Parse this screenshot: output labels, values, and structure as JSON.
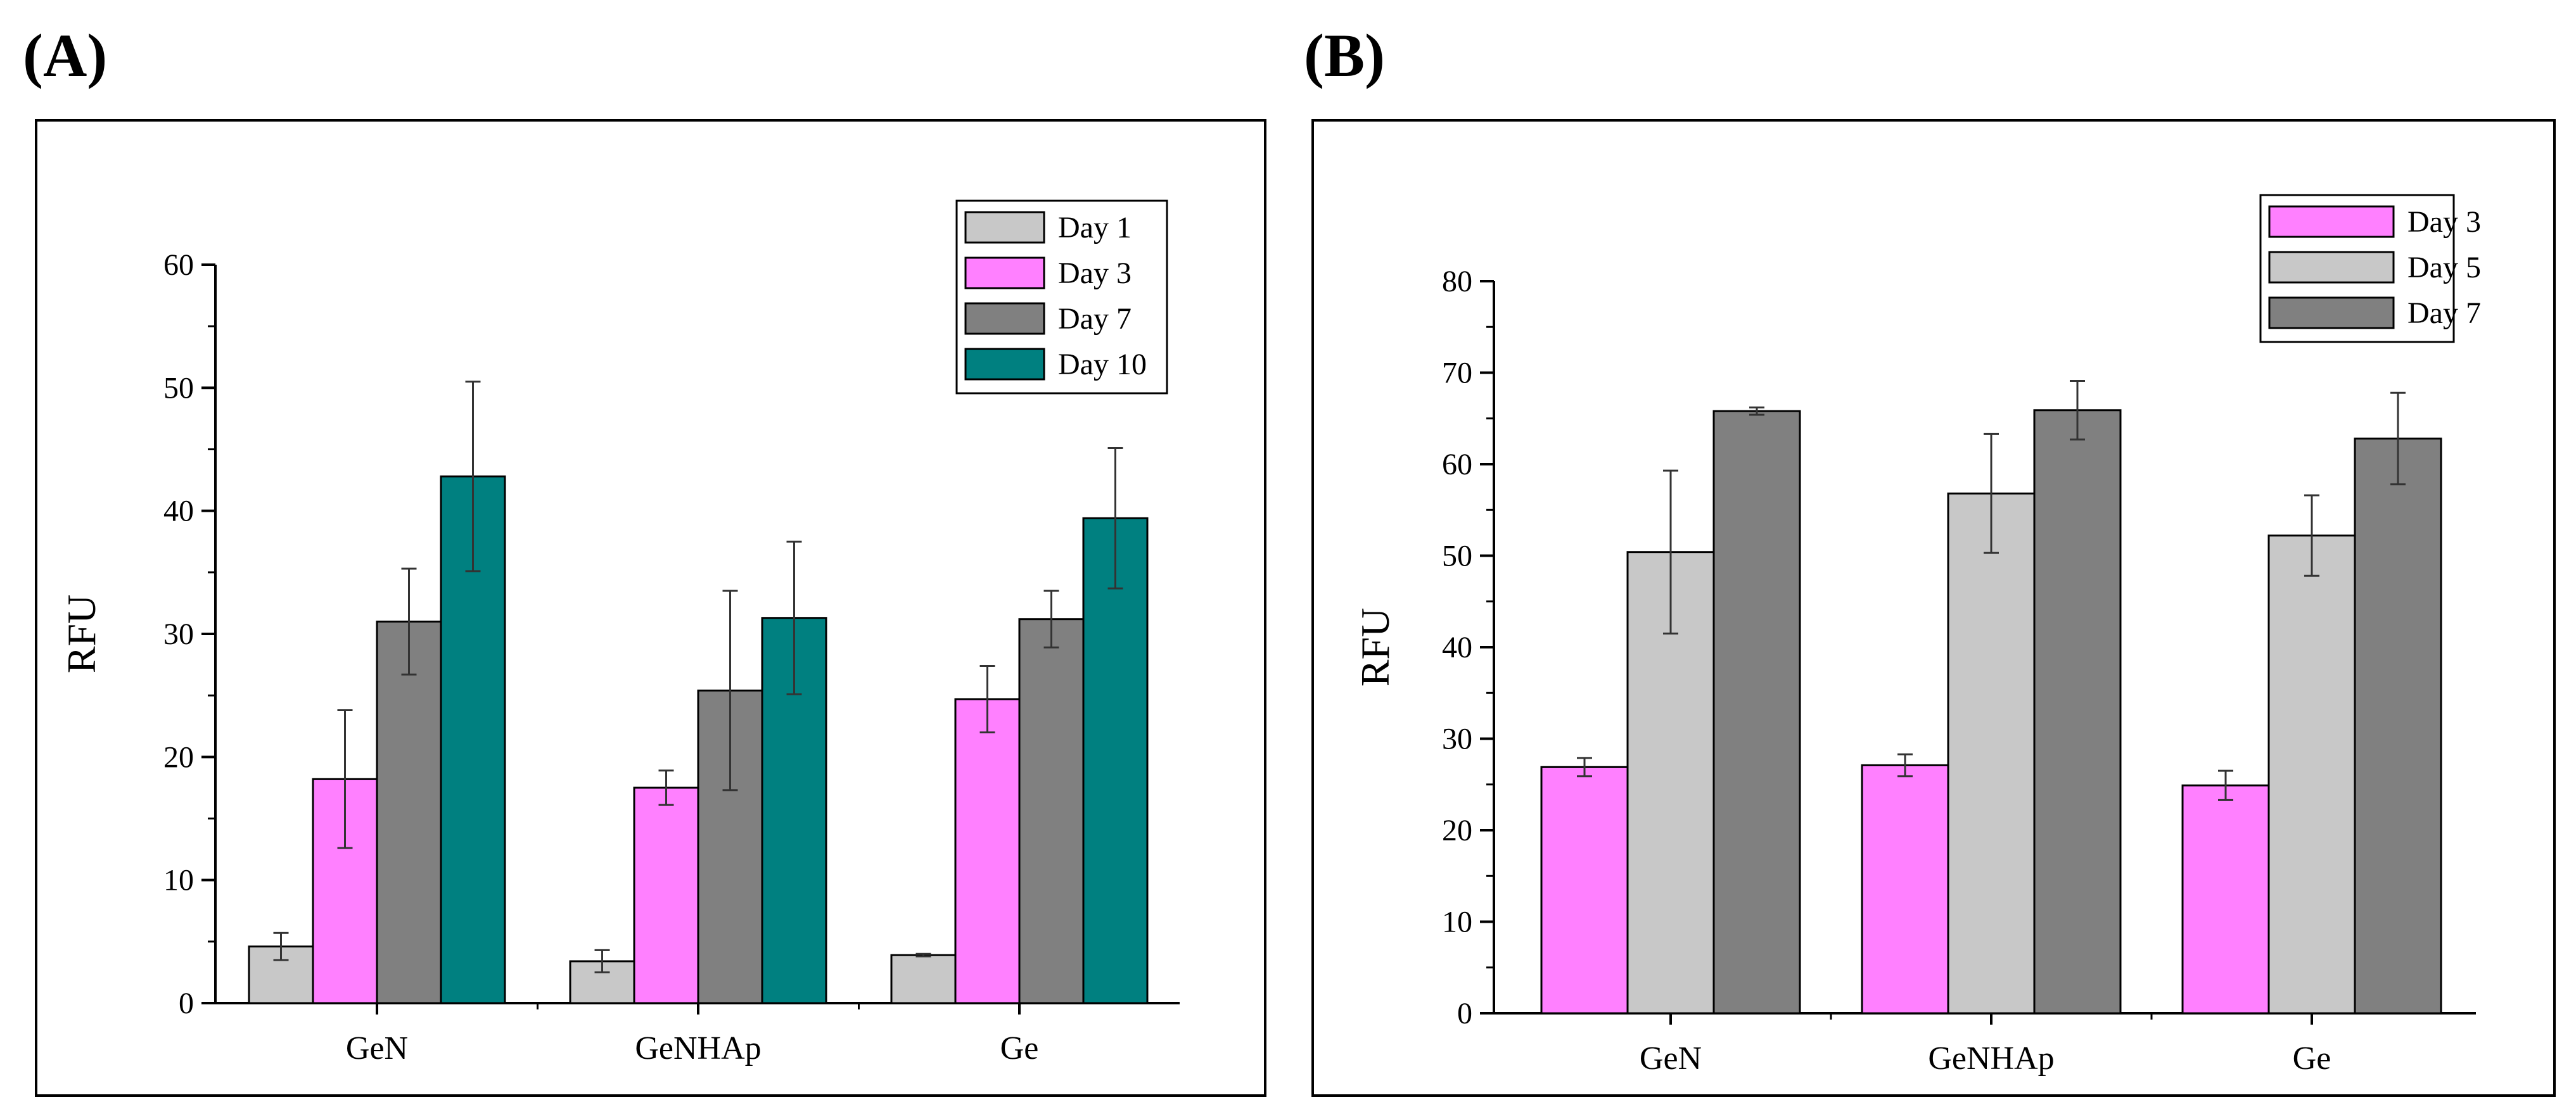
{
  "panel_labels": [
    "(A)",
    "(B)"
  ],
  "colors": {
    "light_gray": "#c8c8c8",
    "magenta": "#ff80ff",
    "dark_gray": "#808080",
    "teal": "#008080"
  },
  "chart_data": [
    {
      "type": "bar",
      "panel": "(A)",
      "title": "",
      "xlabel": "",
      "ylabel": "RFU",
      "ylim": [
        0,
        60
      ],
      "yticks": [
        0,
        10,
        20,
        30,
        40,
        50,
        60
      ],
      "categories": [
        "GeN",
        "GeNHAp",
        "Ge"
      ],
      "legend_position": "top-right",
      "series": [
        {
          "name": "Day 1",
          "color": "#c8c8c8",
          "values": [
            4.6,
            3.4,
            3.9
          ],
          "errors": [
            1.1,
            0.9,
            0.1
          ]
        },
        {
          "name": "Day 3",
          "color": "#ff80ff",
          "values": [
            18.2,
            17.5,
            24.7
          ],
          "errors": [
            5.6,
            1.4,
            2.7
          ]
        },
        {
          "name": "Day 7",
          "color": "#808080",
          "values": [
            31.0,
            25.4,
            31.2
          ],
          "errors": [
            4.3,
            8.1,
            2.3
          ]
        },
        {
          "name": "Day 10",
          "color": "#008080",
          "values": [
            42.8,
            31.3,
            39.4
          ],
          "errors": [
            7.7,
            6.2,
            5.7
          ]
        }
      ]
    },
    {
      "type": "bar",
      "panel": "(B)",
      "title": "",
      "xlabel": "",
      "ylabel": "RFU",
      "ylim": [
        0,
        80
      ],
      "yticks": [
        0,
        10,
        20,
        30,
        40,
        50,
        60,
        70,
        80
      ],
      "categories": [
        "GeN",
        "GeNHAp",
        "Ge"
      ],
      "legend_position": "top-right",
      "series": [
        {
          "name": "Day 3",
          "color": "#ff80ff",
          "values": [
            26.9,
            27.1,
            24.9
          ],
          "errors": [
            1.0,
            1.2,
            1.6
          ]
        },
        {
          "name": "Day 5",
          "color": "#c8c8c8",
          "values": [
            50.4,
            56.8,
            52.2
          ],
          "errors": [
            8.9,
            6.5,
            4.4
          ]
        },
        {
          "name": "Day 7",
          "color": "#808080",
          "values": [
            65.8,
            65.9,
            62.8
          ],
          "errors": [
            0.4,
            3.2,
            5.0
          ]
        }
      ]
    }
  ]
}
